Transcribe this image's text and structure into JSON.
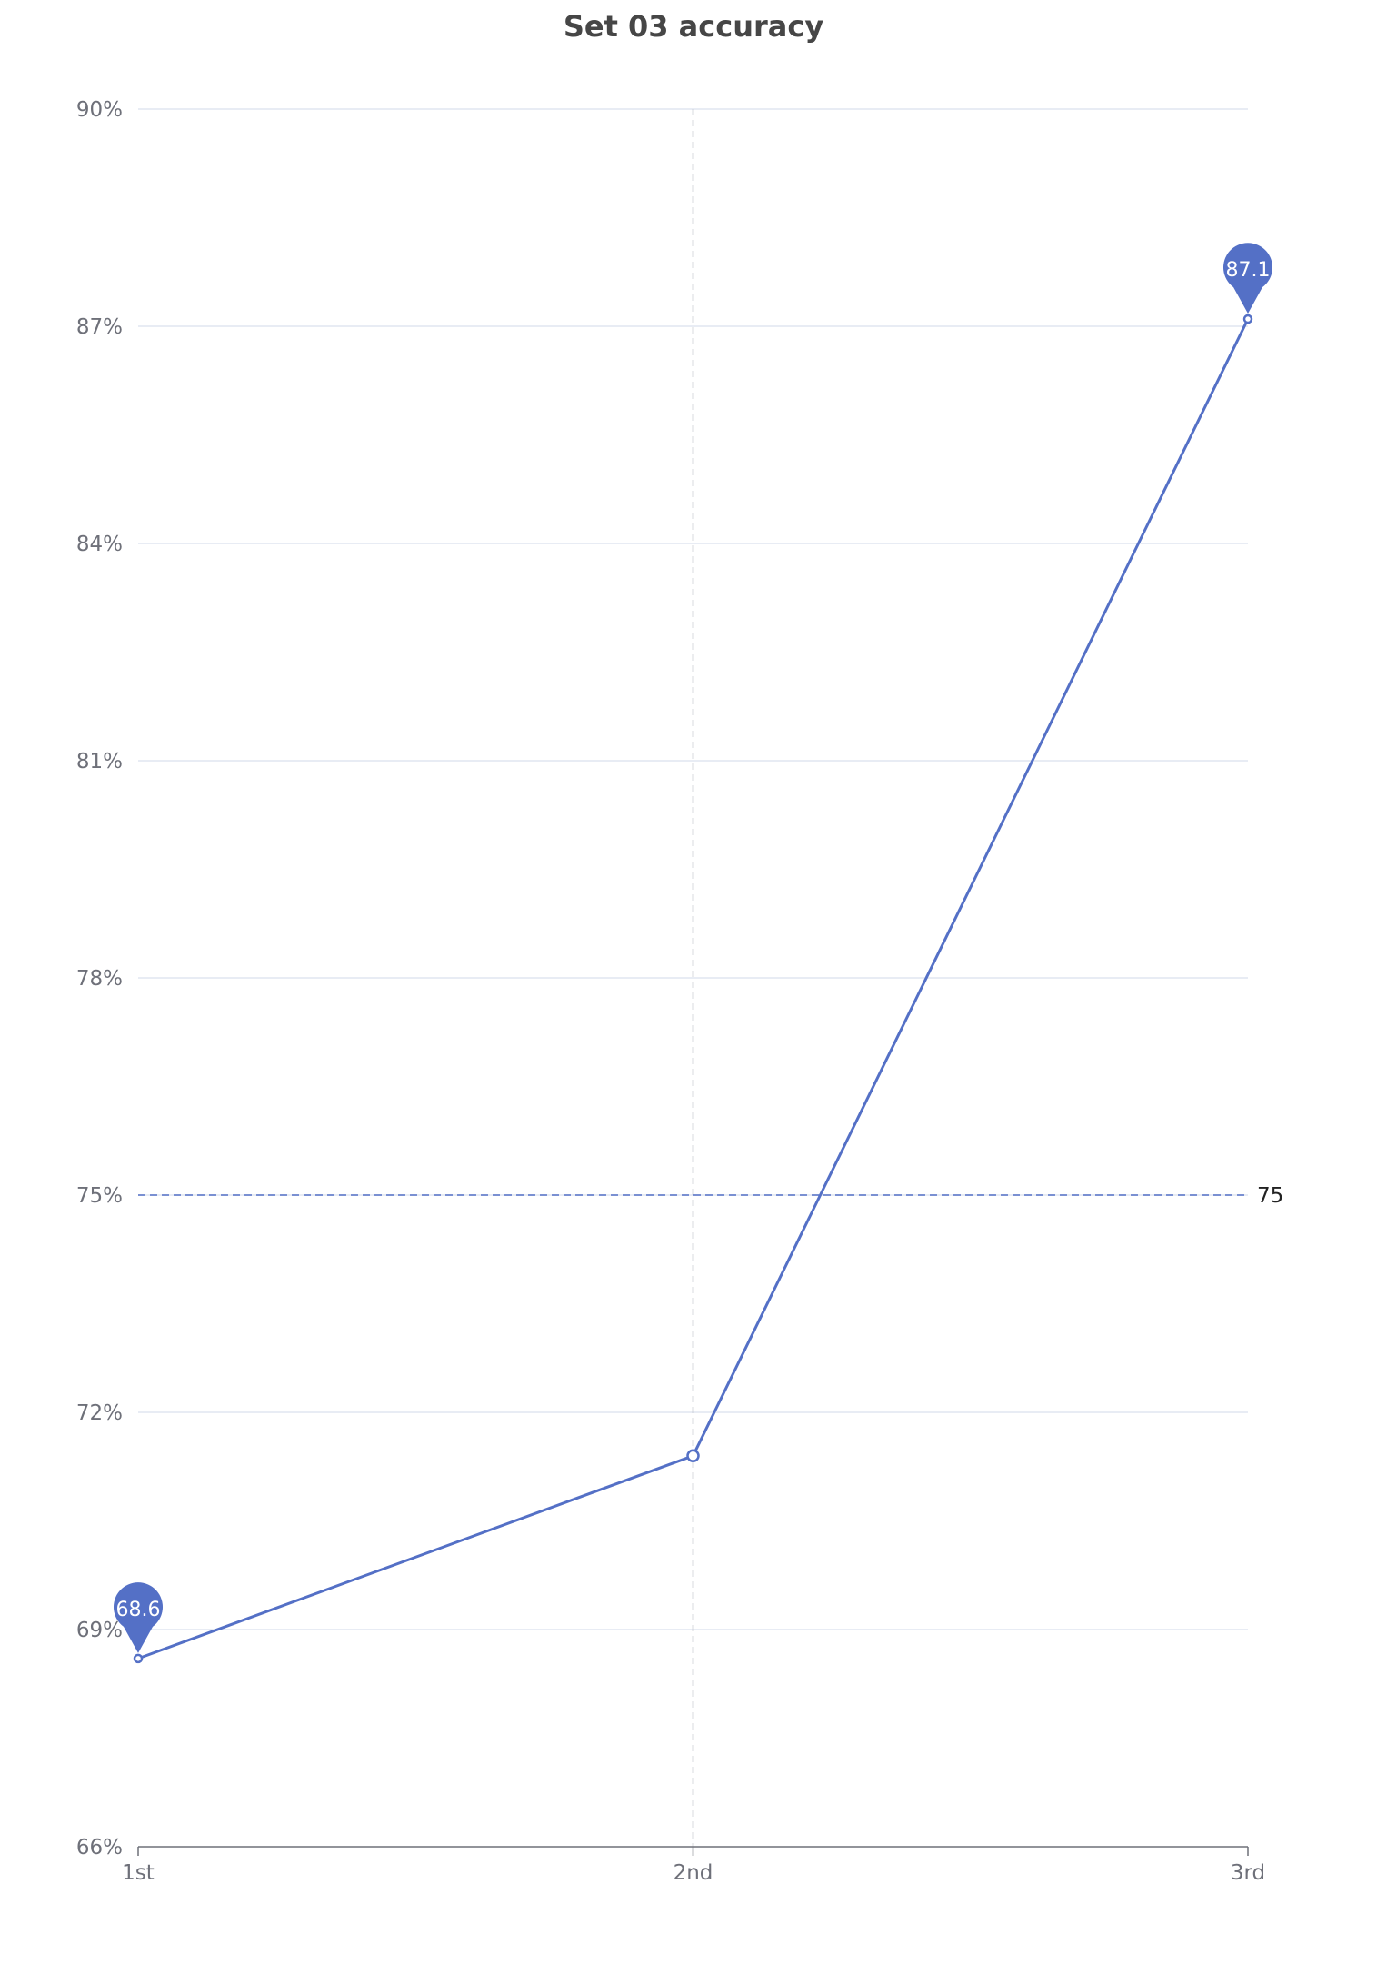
{
  "chart_data": {
    "type": "line",
    "title": "Set 03 accuracy",
    "categories": [
      "1st",
      "2nd",
      "3rd"
    ],
    "series": [
      {
        "values": [
          68.6,
          71.4,
          87.1
        ]
      }
    ],
    "ylim": [
      66,
      90
    ],
    "yticks": [
      66,
      69,
      72,
      75,
      78,
      81,
      84,
      87,
      90
    ],
    "ytick_labels": [
      "66%",
      "69%",
      "72%",
      "75%",
      "78%",
      "81%",
      "84%",
      "87%",
      "90%"
    ],
    "grid": true,
    "mark_points": [
      {
        "category": "1st",
        "value": 68.6,
        "label": "68.6"
      },
      {
        "category": "3rd",
        "value": 87.1,
        "label": "87.1"
      }
    ],
    "mark_line": {
      "value": 75,
      "label": "75"
    },
    "axis_pointer_category": "2nd",
    "colors": {
      "series": "#5470c6",
      "grid": "#e0e6f1",
      "axis": "#6e7079",
      "title": "#464646",
      "pointer": "#b5b8c0"
    }
  }
}
